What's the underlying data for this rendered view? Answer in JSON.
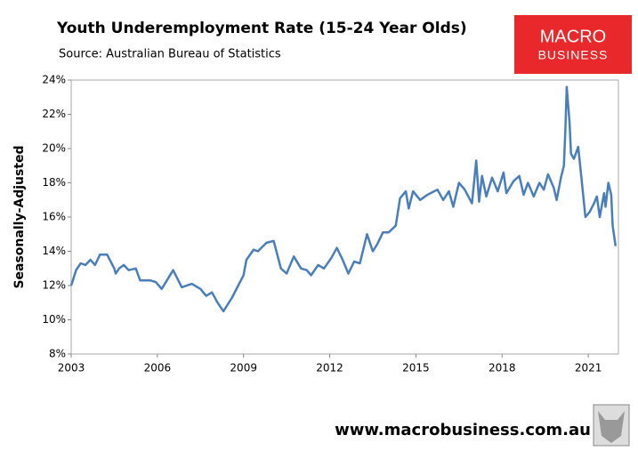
{
  "header": {
    "logo_top": "MACRO",
    "logo_bottom": "BUSINESS",
    "footer": "www.macrobusiness.com.au"
  },
  "chart_data": {
    "type": "line",
    "title": "Youth Underemployment Rate (15-24 Year Olds)",
    "subtitle": "Source: Australian Bureau of Statistics",
    "y_label": "Seasonally-Adjusted",
    "x": [
      2003.0,
      2003.17,
      2003.33,
      2003.5,
      2003.67,
      2003.83,
      2004.0,
      2004.25,
      2004.5,
      2004.55,
      2004.67,
      2004.83,
      2005.0,
      2005.25,
      2005.4,
      2005.75,
      2005.95,
      2006.15,
      2006.55,
      2006.85,
      2007.2,
      2007.5,
      2007.7,
      2007.9,
      2008.1,
      2008.3,
      2008.6,
      2009.0,
      2009.1,
      2009.35,
      2009.5,
      2009.8,
      2010.05,
      2010.3,
      2010.5,
      2010.75,
      2011.0,
      2011.2,
      2011.35,
      2011.6,
      2011.8,
      2012.05,
      2012.25,
      2012.45,
      2012.65,
      2012.85,
      2013.05,
      2013.3,
      2013.5,
      2013.65,
      2013.85,
      2014.05,
      2014.3,
      2014.45,
      2014.65,
      2014.75,
      2014.9,
      2015.15,
      2015.4,
      2015.75,
      2015.95,
      2016.15,
      2016.3,
      2016.5,
      2016.7,
      2016.95,
      2017.1,
      2017.2,
      2017.3,
      2017.45,
      2017.65,
      2017.85,
      2018.05,
      2018.15,
      2018.4,
      2018.6,
      2018.75,
      2018.9,
      2019.1,
      2019.3,
      2019.45,
      2019.6,
      2019.8,
      2019.9,
      2020.05,
      2020.15,
      2020.2,
      2020.25,
      2020.35,
      2020.4,
      2020.5,
      2020.65,
      2020.75,
      2020.9,
      2021.05,
      2021.2,
      2021.3,
      2021.4,
      2021.55,
      2021.6,
      2021.7,
      2021.8,
      2021.85,
      2021.95
    ],
    "series": [
      {
        "name": "Youth underemployment",
        "color": "#4a7ebb",
        "values": [
          12.0,
          12.9,
          13.3,
          13.2,
          13.5,
          13.2,
          13.8,
          13.8,
          13.0,
          12.7,
          13.0,
          13.2,
          12.9,
          13.0,
          12.3,
          12.3,
          12.2,
          11.8,
          12.9,
          11.9,
          12.1,
          11.8,
          11.4,
          11.6,
          11.0,
          10.5,
          11.3,
          12.6,
          13.5,
          14.1,
          14.0,
          14.5,
          14.6,
          13.0,
          12.7,
          13.7,
          13.0,
          12.9,
          12.6,
          13.2,
          13.0,
          13.6,
          14.2,
          13.5,
          12.7,
          13.4,
          13.3,
          15.0,
          14.0,
          14.4,
          15.1,
          15.1,
          15.5,
          17.1,
          17.5,
          16.5,
          17.5,
          17.0,
          17.3,
          17.6,
          17.0,
          17.5,
          16.6,
          18.0,
          17.6,
          16.8,
          19.3,
          16.9,
          18.4,
          17.2,
          18.3,
          17.5,
          18.6,
          17.4,
          18.1,
          18.4,
          17.3,
          18.0,
          17.2,
          18.0,
          17.6,
          18.5,
          17.7,
          17.0,
          18.3,
          19.0,
          21.0,
          23.6,
          21.5,
          19.7,
          19.4,
          20.1,
          18.5,
          16.0,
          16.3,
          16.8,
          17.2,
          16.0,
          17.4,
          16.6,
          18.0,
          17.3,
          15.5,
          14.3
        ]
      }
    ],
    "xlim": [
      2003,
      2022.05
    ],
    "xticks": [
      2003,
      2006,
      2009,
      2012,
      2015,
      2018,
      2021
    ],
    "ylim": [
      8,
      24
    ],
    "yticks": [
      {
        "value": 8,
        "label": "8%"
      },
      {
        "value": 10,
        "label": "10%"
      },
      {
        "value": 12,
        "label": "12%"
      },
      {
        "value": 14,
        "label": "14%"
      },
      {
        "value": 16,
        "label": "16%"
      },
      {
        "value": 18,
        "label": "18%"
      },
      {
        "value": 20,
        "label": "20%"
      },
      {
        "value": 22,
        "label": "22%"
      },
      {
        "value": 24,
        "label": "24%"
      }
    ],
    "grid": false
  }
}
